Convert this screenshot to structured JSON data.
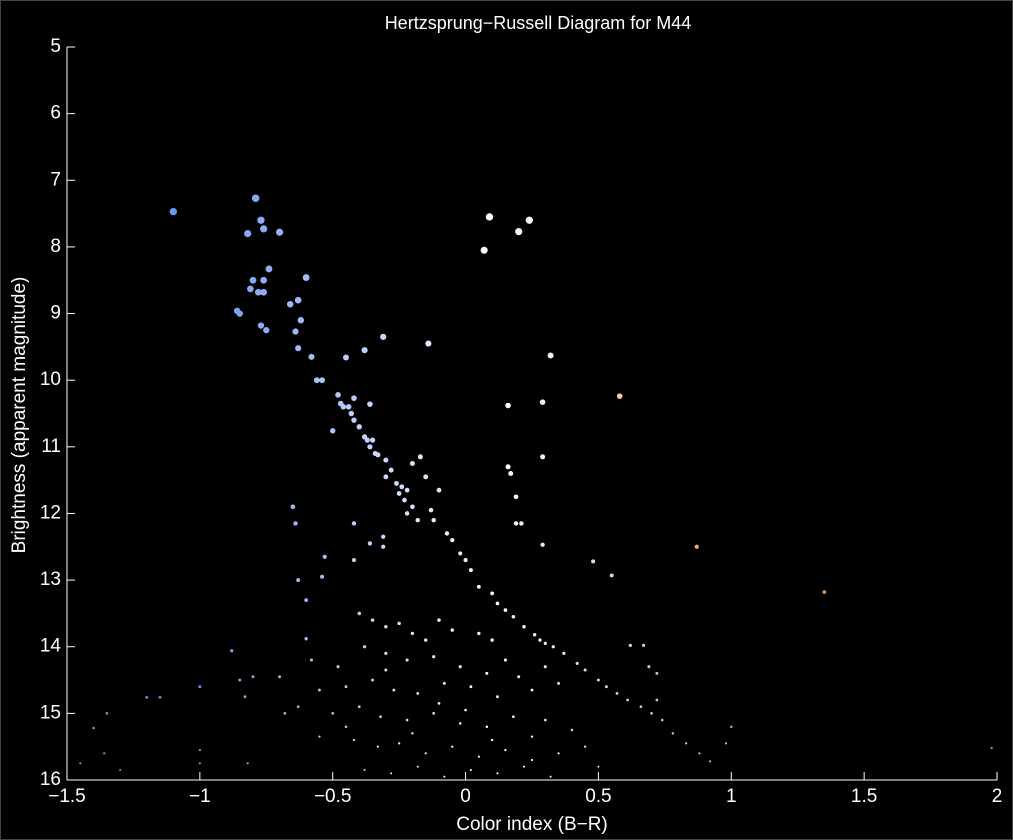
{
  "chart_data": {
    "type": "scatter",
    "title": "Hertzsprung−Russell Diagram for M44",
    "x_label": "Color index (B−R)",
    "y_label": "Brightness (apparent magnitude)",
    "xlim": [
      -1.5,
      2
    ],
    "ylim": [
      5,
      16
    ],
    "y_reversed": true,
    "xticks": [
      {
        "value": -1.5,
        "label": "−1.5"
      },
      {
        "value": -1,
        "label": "−1"
      },
      {
        "value": -0.5,
        "label": "−0.5"
      },
      0,
      0.5,
      1,
      1.5,
      2
    ],
    "yticks": [
      5,
      6,
      7,
      8,
      9,
      10,
      11,
      12,
      13,
      14,
      15,
      16
    ],
    "colormap": [
      "#6b96f0",
      "#ffffff",
      "#d98a4a"
    ],
    "x": [
      -1.1,
      -0.79,
      -0.82,
      -0.77,
      -0.76,
      -0.7,
      -0.74,
      -0.8,
      -0.76,
      -0.81,
      -0.78,
      -0.76,
      -0.85,
      -0.86,
      -0.66,
      -0.63,
      -0.6,
      -0.77,
      -0.75,
      -0.64,
      -0.63,
      -0.62,
      -0.58,
      -0.56,
      -0.54,
      -0.48,
      -0.47,
      -0.46,
      -0.44,
      -0.43,
      -0.42,
      -0.4,
      -0.42,
      -0.38,
      -0.37,
      -0.35,
      -0.36,
      -0.34,
      -0.33,
      -0.36,
      -0.5,
      -0.45,
      -0.38,
      -0.31,
      -0.14,
      0.09,
      0.24,
      0.2,
      0.07,
      0.32,
      0.58,
      0.16,
      0.29,
      0.29,
      0.16,
      0.17,
      0.19,
      0.19,
      0.21,
      0.29,
      0.87,
      0.48,
      0.55,
      1.35,
      1.98,
      -0.3,
      -0.28,
      -0.3,
      -0.26,
      -0.24,
      -0.22,
      -0.25,
      -0.23,
      -0.2,
      -0.22,
      -0.18,
      -0.2,
      -0.15,
      -0.1,
      -0.17,
      -0.13,
      -0.12,
      -0.07,
      -0.05,
      -0.02,
      0.0,
      -0.31,
      -0.31,
      -0.36,
      -0.42,
      -0.42,
      -0.53,
      -0.65,
      -0.64,
      -0.54,
      -0.6,
      -0.63,
      0.02,
      0.05,
      0.1,
      0.12,
      0.15,
      0.18,
      0.22,
      0.26,
      0.28,
      0.3,
      0.33,
      0.37,
      0.42,
      0.45,
      0.5,
      0.53,
      0.57,
      0.61,
      0.66,
      0.7,
      0.74,
      0.78,
      0.83,
      0.88,
      0.92,
      1.0,
      0.98,
      0.62,
      0.67,
      0.69,
      0.72,
      0.72,
      -1.4,
      -1.35,
      -1.36,
      -1.3,
      -1.45,
      -1.2,
      -1.15,
      -1.0,
      -1.0,
      -1.0,
      -0.88,
      -0.85,
      -0.83,
      -0.82,
      -0.8,
      -0.7,
      -0.68,
      -0.63,
      -0.6,
      -0.58,
      -0.55,
      -0.45,
      -0.4,
      -0.35,
      -0.3,
      -0.25,
      -0.2,
      -0.15,
      -0.1,
      -0.05,
      0.05,
      0.1,
      -0.38,
      -0.3,
      -0.22,
      -0.12,
      -0.02,
      0.08,
      0.15,
      0.2,
      -0.45,
      -0.35,
      -0.27,
      -0.18,
      -0.08,
      0.02,
      0.12,
      0.25,
      0.35,
      -0.5,
      -0.4,
      -0.32,
      -0.22,
      -0.12,
      -0.02,
      0.08,
      0.18,
      0.3,
      0.4,
      -0.42,
      -0.33,
      -0.25,
      -0.15,
      -0.05,
      0.05,
      0.15,
      0.25,
      0.35,
      -0.38,
      -0.28,
      -0.18,
      -0.08,
      0.02,
      0.12,
      0.22,
      0.32,
      -0.48,
      0.45,
      0.5,
      -0.55,
      0.3,
      0.25,
      -0.2,
      -0.1,
      0.0,
      -0.3,
      0.1
    ],
    "values": [
      7.47,
      7.27,
      7.8,
      7.6,
      7.73,
      7.78,
      8.33,
      8.5,
      8.5,
      8.63,
      8.68,
      8.68,
      9.0,
      8.96,
      8.86,
      8.8,
      8.46,
      9.18,
      9.25,
      9.27,
      9.52,
      9.1,
      9.65,
      10.0,
      10.0,
      10.22,
      10.35,
      10.4,
      10.4,
      10.5,
      10.6,
      10.7,
      10.27,
      10.85,
      10.9,
      10.9,
      11.0,
      11.1,
      11.12,
      10.36,
      10.76,
      9.66,
      9.55,
      9.35,
      9.45,
      7.55,
      7.6,
      7.77,
      8.05,
      9.63,
      10.24,
      10.38,
      10.33,
      11.15,
      11.3,
      11.4,
      11.75,
      12.15,
      12.15,
      12.47,
      12.5,
      12.72,
      12.93,
      13.18,
      15.52,
      11.2,
      11.35,
      11.45,
      11.55,
      11.6,
      11.65,
      11.7,
      11.8,
      11.9,
      12.0,
      12.1,
      11.25,
      11.45,
      11.65,
      11.15,
      11.95,
      12.1,
      12.3,
      12.4,
      12.6,
      12.7,
      12.35,
      12.5,
      12.45,
      12.15,
      12.7,
      12.65,
      11.9,
      12.15,
      12.95,
      13.3,
      13.0,
      12.85,
      13.1,
      13.2,
      13.35,
      13.45,
      13.55,
      13.7,
      13.82,
      13.9,
      13.95,
      14.0,
      14.1,
      14.25,
      14.35,
      14.5,
      14.6,
      14.7,
      14.8,
      14.9,
      15.0,
      15.1,
      15.3,
      15.45,
      15.6,
      15.72,
      15.2,
      15.45,
      13.98,
      13.98,
      14.3,
      14.4,
      14.8,
      15.22,
      15.0,
      15.6,
      15.85,
      15.75,
      14.76,
      14.76,
      14.6,
      15.55,
      15.75,
      14.06,
      14.5,
      14.75,
      15.75,
      14.45,
      14.45,
      15.0,
      14.9,
      13.88,
      14.2,
      15.35,
      15.2,
      13.5,
      13.6,
      13.7,
      13.65,
      13.8,
      13.9,
      13.6,
      13.75,
      13.8,
      13.9,
      14.0,
      14.1,
      14.2,
      14.15,
      14.3,
      14.4,
      14.2,
      14.45,
      14.6,
      14.5,
      14.65,
      14.7,
      14.55,
      14.6,
      14.75,
      14.65,
      14.55,
      15.0,
      14.9,
      15.05,
      15.1,
      15.0,
      15.15,
      15.2,
      15.05,
      15.1,
      15.25,
      15.4,
      15.5,
      15.45,
      15.6,
      15.5,
      15.65,
      15.55,
      15.7,
      15.6,
      15.85,
      15.9,
      15.8,
      15.95,
      15.85,
      15.9,
      15.8,
      15.95,
      14.3,
      15.5,
      15.8,
      14.65,
      14.3,
      15.35,
      15.3,
      14.85,
      14.95,
      14.35,
      15.4
    ]
  }
}
